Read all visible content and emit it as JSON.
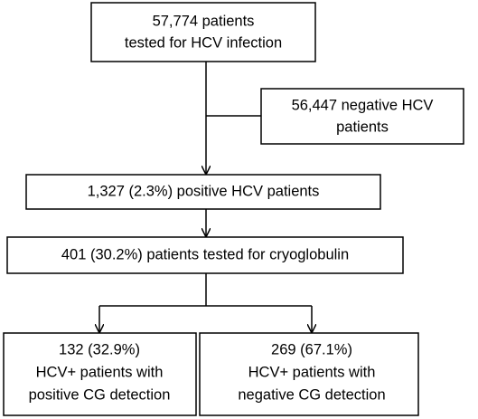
{
  "nodes": [
    {
      "lines": [
        "57,774 patients",
        "tested for HCV infection"
      ]
    },
    {
      "lines": [
        "56,447 negative HCV",
        "patients"
      ]
    },
    {
      "lines": [
        "1,327 (2.3%) positive HCV patients"
      ]
    },
    {
      "lines": [
        "401 (30.2%) patients tested for cryoglobulin"
      ]
    },
    {
      "lines": [
        "132 (32.9%)",
        "HCV+ patients with",
        "positive CG detection"
      ]
    },
    {
      "lines": [
        "269 (67.1%)",
        "HCV+ patients with",
        "negative CG detection"
      ]
    }
  ]
}
